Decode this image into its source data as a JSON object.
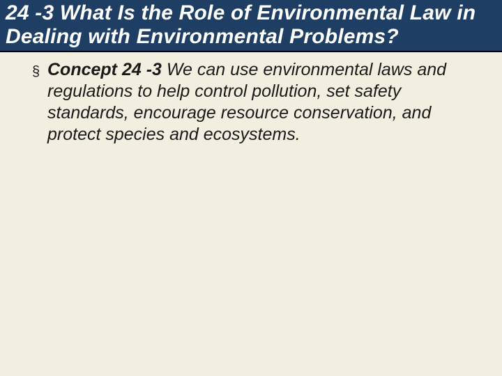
{
  "slide": {
    "background_color": "#f2efe0",
    "title_band_color": "#1f3e63",
    "title_text_color": "#ffffff",
    "body_text_color": "#1a1a1a",
    "title": "24 -3 What Is the Role of Environmental Law in Dealing with Environmental Problems?",
    "title_fontsize": 30,
    "title_bold": true,
    "title_italic": true,
    "bullet_glyph": "§",
    "body": {
      "concept_label": "Concept 24 -3",
      "concept_text": "  We can use environmental laws and regulations to help control pollution, set safety standards, encourage resource conservation, and protect species and ecosystems.",
      "fontsize": 25,
      "italic": true
    }
  }
}
